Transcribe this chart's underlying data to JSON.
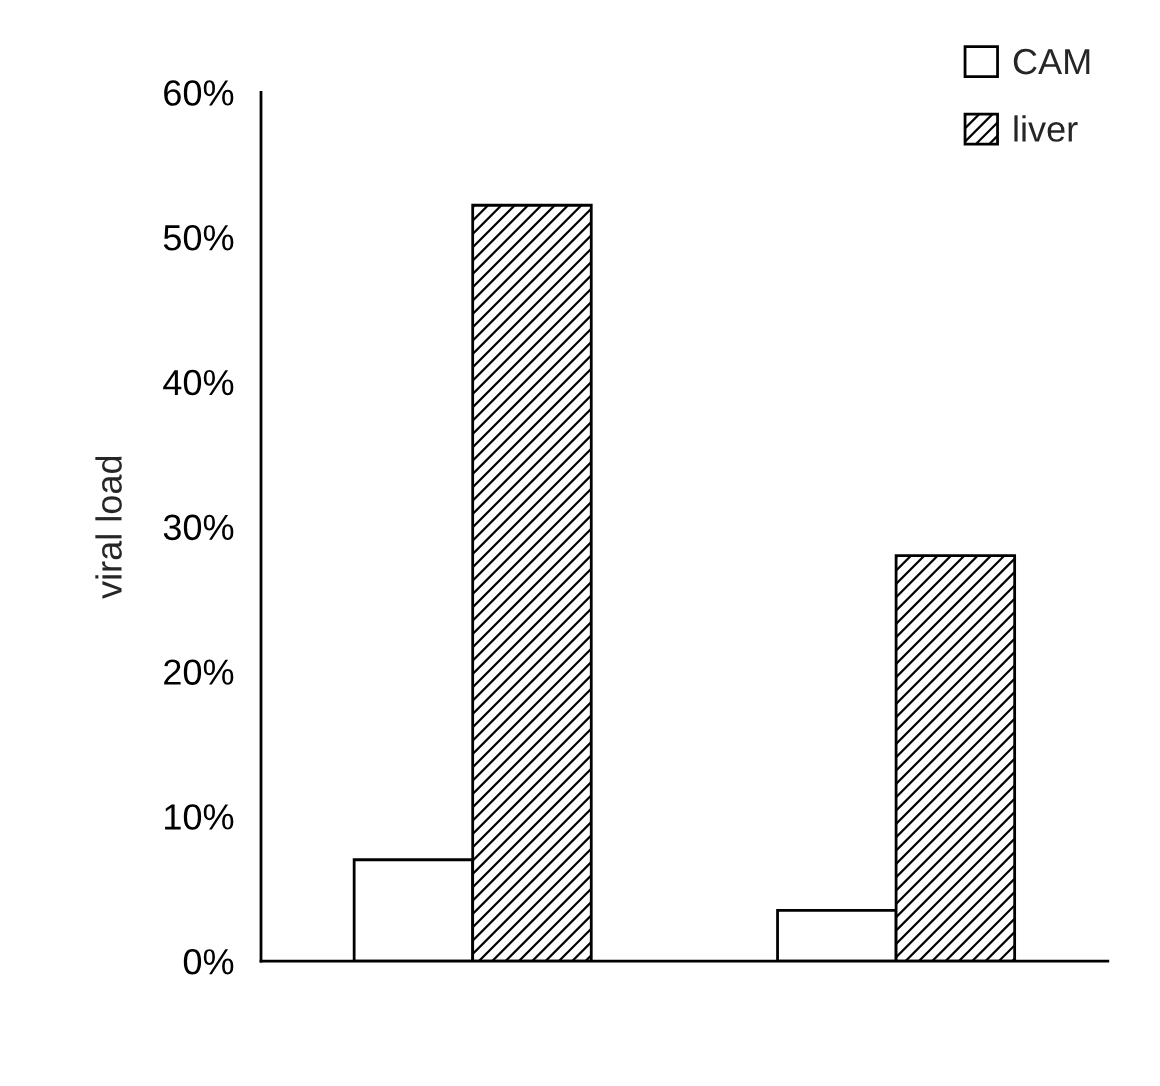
{
  "chart_data": {
    "type": "bar",
    "ylabel": "viral load",
    "categories": [
      null,
      null
    ],
    "series": [
      {
        "name": "CAM",
        "color": "#ffffff",
        "values": [
          7.0,
          3.5
        ]
      },
      {
        "name": "liver",
        "color": "#000000",
        "values": [
          52.2,
          28.0
        ]
      }
    ],
    "ylim": [
      0,
      60
    ],
    "yticks": [
      {
        "value": 0,
        "label": "0%"
      },
      {
        "value": 10,
        "label": "10%"
      },
      {
        "value": 20,
        "label": "20%"
      },
      {
        "value": 30,
        "label": "30%"
      },
      {
        "value": 40,
        "label": "40%"
      },
      {
        "value": 50,
        "label": "50%"
      },
      {
        "value": 60,
        "label": "60%"
      }
    ],
    "grid": false,
    "legend": "top right",
    "tick_labels": "y"
  }
}
